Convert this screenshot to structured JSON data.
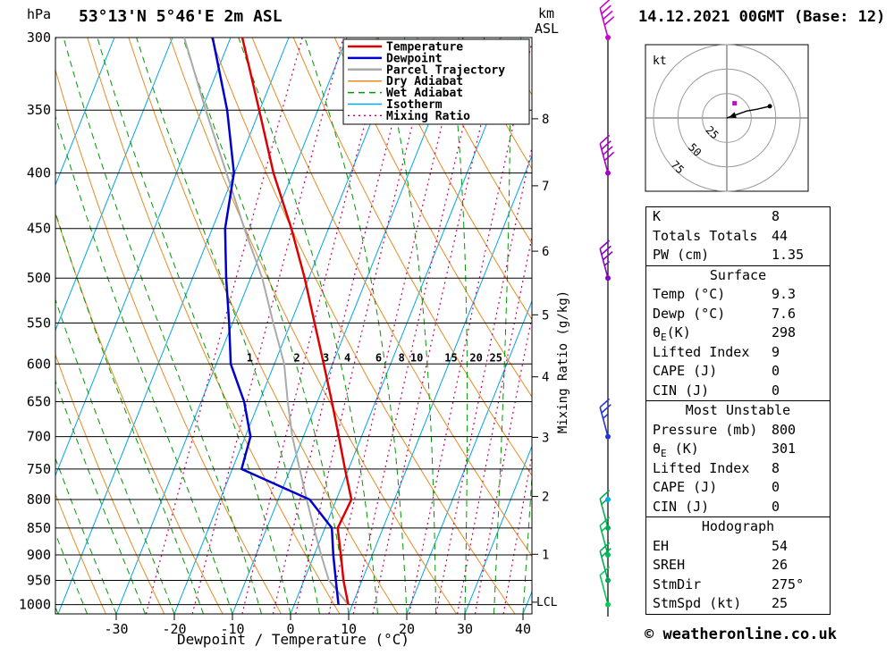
{
  "header": {
    "pressure_unit": "hPa",
    "station_title": "53°13'N 5°46'E 2m ASL",
    "altitude_unit_top": "km",
    "altitude_unit_bottom": "ASL",
    "datetime": "14.12.2021 00GMT (Base: 12)"
  },
  "axes": {
    "pressure_ticks": [
      300,
      350,
      400,
      450,
      500,
      550,
      600,
      650,
      700,
      750,
      800,
      850,
      900,
      950,
      1000
    ],
    "temp_ticks": [
      -30,
      -20,
      -10,
      0,
      10,
      20,
      30,
      40
    ],
    "temp_axis_label": "Dewpoint / Temperature (°C)",
    "km_ticks": [
      8,
      7,
      6,
      5,
      4,
      3,
      2,
      1
    ],
    "lcl_label": "LCL",
    "mixing_axis_label": "Mixing Ratio (g/kg)"
  },
  "legend": [
    {
      "label": "Temperature",
      "color": "#dd0000",
      "style": "solid"
    },
    {
      "label": "Dewpoint",
      "color": "#0000cc",
      "style": "solid"
    },
    {
      "label": "Parcel Trajectory",
      "color": "#aaaaaa",
      "style": "solid"
    },
    {
      "label": "Dry Adiabat",
      "color": "#e78b24",
      "style": "solid"
    },
    {
      "label": "Wet Adiabat",
      "color": "#009900",
      "style": "dashed"
    },
    {
      "label": "Isotherm",
      "color": "#00a6e8",
      "style": "solid"
    },
    {
      "label": "Mixing Ratio",
      "color": "#cc0066",
      "style": "dotted"
    }
  ],
  "chart_data": {
    "type": "line",
    "subtype": "skewt-logp-sounding",
    "title": "53°13'N 5°46'E 2m ASL",
    "pressure_hpa": [
      1000,
      950,
      900,
      850,
      800,
      750,
      700,
      650,
      600,
      550,
      500,
      450,
      400,
      350,
      300
    ],
    "series": [
      {
        "name": "Parcel Trajectory",
        "color": "#aaaaaa",
        "width": 2,
        "values": [
          9.3,
          4.3,
          1.2,
          -1.9,
          -5.1,
          -8.4,
          -11.9,
          -15.1,
          -18.3,
          -23.0,
          -28.0,
          -34.5,
          -41.4,
          -49.3,
          -58.0
        ]
      },
      {
        "name": "Dewpoint",
        "color": "#0000cc",
        "width": 2.5,
        "values": [
          7.6,
          5.5,
          3.3,
          1.2,
          -4.6,
          -18.4,
          -19.1,
          -22.6,
          -27.5,
          -30.6,
          -34.2,
          -37.8,
          -40.1,
          -45.6,
          -53.1
        ]
      },
      {
        "name": "Temperature",
        "color": "#dd0000",
        "width": 2.5,
        "values": [
          9.3,
          6.8,
          4.6,
          2.2,
          2.6,
          -0.6,
          -3.9,
          -7.5,
          -11.5,
          -15.9,
          -20.7,
          -26.4,
          -33.3,
          -40.1,
          -48.0
        ]
      }
    ],
    "x_axis": {
      "label": "Dewpoint / Temperature (°C)",
      "ticks": [
        -30,
        -20,
        -10,
        0,
        10,
        20,
        30,
        40
      ],
      "unit": "°C"
    },
    "y_axis": {
      "label": "hPa",
      "scale": "log",
      "range": [
        300,
        1020
      ]
    },
    "background_lines": {
      "isotherm": {
        "color": "#00a6e8",
        "step_c": 10
      },
      "dry_adiabat": {
        "color": "#e78b24",
        "step_k": 10
      },
      "wet_adiabat": {
        "color": "#009900",
        "step_c": 5
      },
      "mixing_ratio": {
        "color": "#cc0066",
        "lines_g_kg": [
          0.5,
          1,
          2,
          3,
          4,
          6,
          8,
          10,
          15,
          20,
          25,
          30,
          40
        ],
        "labeled_g_kg": [
          1,
          2,
          3,
          4,
          6,
          8,
          10,
          15,
          20,
          25
        ]
      }
    }
  },
  "winds": [
    {
      "pressure_hpa": 300,
      "speed_kt": 40,
      "color": "#cc00cc"
    },
    {
      "pressure_hpa": 400,
      "speed_kt": 40,
      "color": "#aa00cc"
    },
    {
      "pressure_hpa": 500,
      "speed_kt": 35,
      "color": "#8800cc"
    },
    {
      "pressure_hpa": 700,
      "speed_kt": 25,
      "color": "#2233dd"
    },
    {
      "pressure_hpa": 800,
      "speed_kt": 0,
      "color": "#00aaee"
    },
    {
      "pressure_hpa": 850,
      "speed_kt": 15,
      "color": "#00aa55"
    },
    {
      "pressure_hpa": 900,
      "speed_kt": 15,
      "color": "#00bb55"
    },
    {
      "pressure_hpa": 950,
      "speed_kt": 20,
      "color": "#00aa55"
    },
    {
      "pressure_hpa": 1000,
      "speed_kt": 10,
      "color": "#00cc55"
    }
  ],
  "hodograph": {
    "unit_label": "kt",
    "rings_kt": [
      25,
      50,
      75
    ],
    "ring_labels": [
      "25",
      "50",
      "75"
    ],
    "trace_kt": [
      [
        0,
        0
      ],
      [
        9,
        -3
      ],
      [
        20,
        -7
      ],
      [
        31,
        -9
      ],
      [
        44,
        -12
      ]
    ],
    "marker_kt": [
      8,
      -15
    ],
    "marker_color": "#cc00cc"
  },
  "table": {
    "sections": [
      {
        "rows": [
          {
            "label": "K",
            "value": "8"
          },
          {
            "label": "Totals Totals",
            "value": "44"
          },
          {
            "label": "PW (cm)",
            "value": "1.35"
          }
        ]
      },
      {
        "header": "Surface",
        "rows": [
          {
            "label": "Temp (°C)",
            "value": "9.3"
          },
          {
            "label": "Dewp (°C)",
            "value": "7.6"
          },
          {
            "pre": "θ",
            "sub": "E",
            "post": "(K)",
            "value": "298"
          },
          {
            "label": "Lifted Index",
            "value": "9"
          },
          {
            "label": "CAPE (J)",
            "value": "0"
          },
          {
            "label": "CIN (J)",
            "value": "0"
          }
        ]
      },
      {
        "header": "Most Unstable",
        "rows": [
          {
            "label": "Pressure (mb)",
            "value": "800"
          },
          {
            "pre": "θ",
            "sub": "E",
            "post": " (K)",
            "value": "301"
          },
          {
            "label": "Lifted Index",
            "value": "8"
          },
          {
            "label": "CAPE (J)",
            "value": "0"
          },
          {
            "label": "CIN (J)",
            "value": "0"
          }
        ]
      },
      {
        "header": "Hodograph",
        "rows": [
          {
            "label": "EH",
            "value": "54"
          },
          {
            "label": "SREH",
            "value": "26"
          },
          {
            "label": "StmDir",
            "value": "275°"
          },
          {
            "label": "StmSpd (kt)",
            "value": "25"
          }
        ]
      }
    ]
  },
  "footer": {
    "copyright": "© weatheronline.co.uk"
  }
}
